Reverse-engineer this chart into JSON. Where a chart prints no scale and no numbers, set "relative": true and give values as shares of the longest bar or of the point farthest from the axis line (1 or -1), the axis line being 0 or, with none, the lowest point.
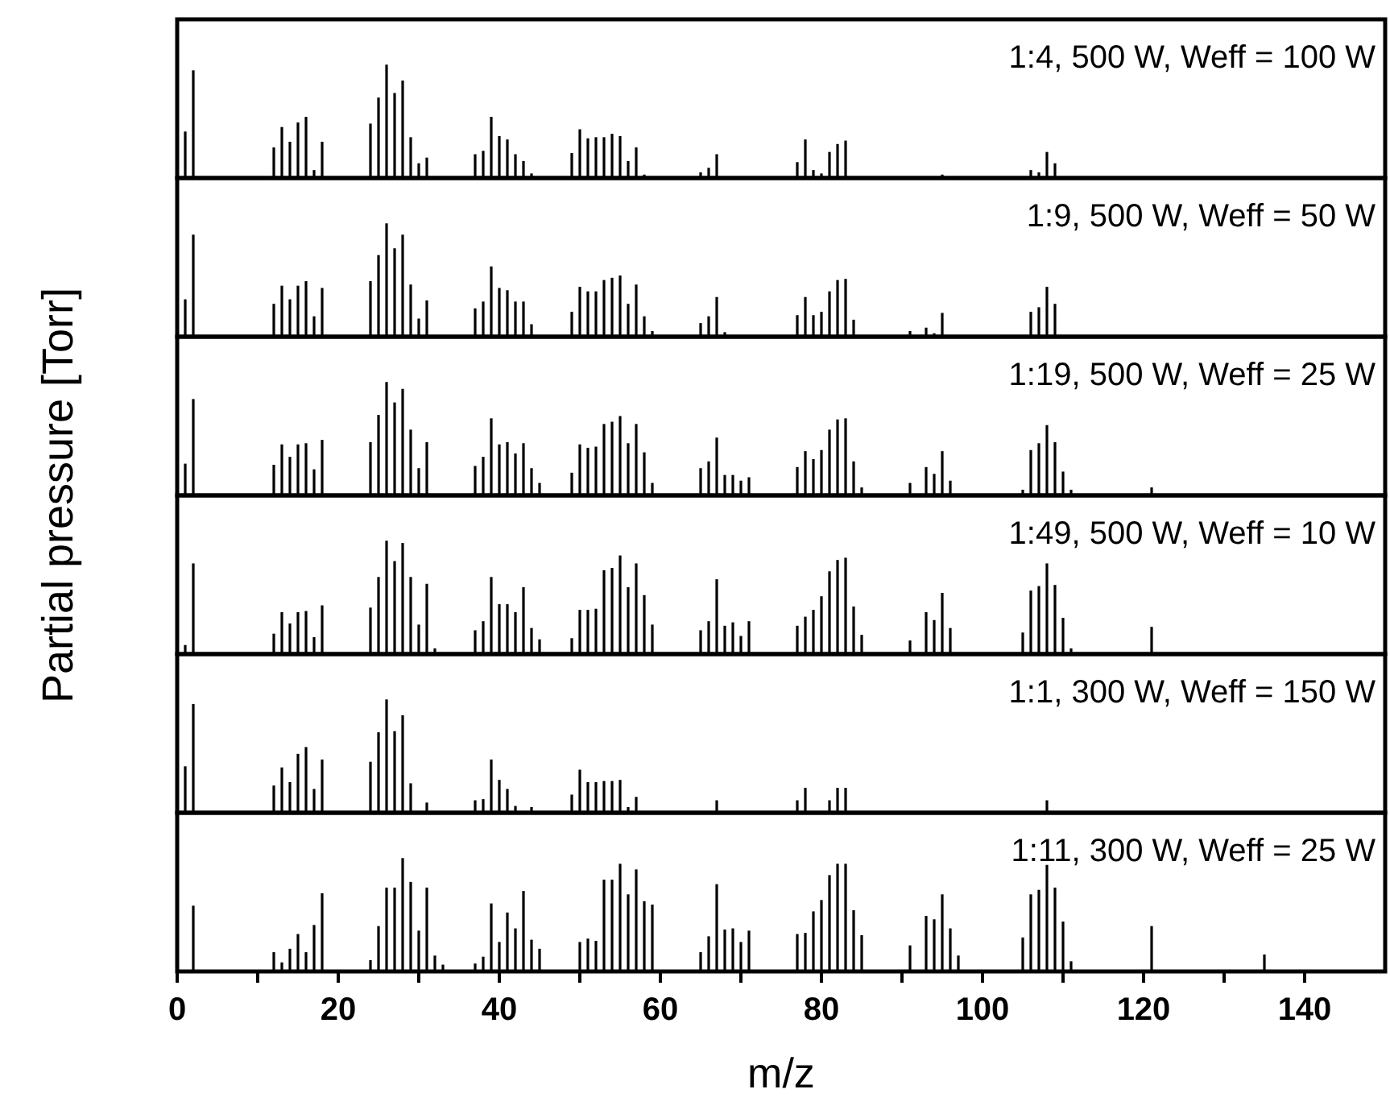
{
  "chart_data": [
    {
      "type": "bar",
      "relative": true,
      "xlim": [
        0,
        150
      ],
      "tick_labels": false,
      "annotations": [
        "1:4, 500 W, Weff = 100 W"
      ],
      "series": [
        {
          "color": "#000000",
          "x": [
            1,
            2,
            12,
            13,
            14,
            15,
            16,
            17,
            18,
            24,
            25,
            26,
            27,
            28,
            29,
            30,
            31,
            37,
            38,
            39,
            40,
            41,
            42,
            43,
            44,
            49,
            50,
            51,
            52,
            53,
            54,
            55,
            56,
            57,
            58,
            65,
            66,
            67,
            77,
            78,
            79,
            80,
            81,
            82,
            83,
            95,
            106,
            107,
            108,
            109
          ],
          "values": [
            0.41,
            0.95,
            0.27,
            0.45,
            0.32,
            0.49,
            0.54,
            0.07,
            0.32,
            0.48,
            0.71,
            1,
            0.75,
            0.86,
            0.36,
            0.13,
            0.18,
            0.21,
            0.24,
            0.54,
            0.37,
            0.34,
            0.21,
            0.15,
            0.04,
            0.22,
            0.43,
            0.35,
            0.36,
            0.36,
            0.39,
            0.37,
            0.15,
            0.27,
            0.03,
            0.05,
            0.09,
            0.21,
            0.14,
            0.34,
            0.07,
            0.04,
            0.23,
            0.3,
            0.33,
            0.03,
            0.07,
            0.05,
            0.23,
            0.13
          ]
        }
      ]
    },
    {
      "type": "bar",
      "relative": true,
      "xlim": [
        0,
        150
      ],
      "tick_labels": false,
      "annotations": [
        "1:9, 500 W, Weff = 50 W"
      ],
      "series": [
        {
          "color": "#000000",
          "x": [
            1,
            2,
            12,
            13,
            14,
            15,
            16,
            17,
            18,
            24,
            25,
            26,
            27,
            28,
            29,
            30,
            31,
            37,
            38,
            39,
            40,
            41,
            42,
            43,
            44,
            49,
            50,
            51,
            52,
            53,
            54,
            55,
            56,
            57,
            58,
            59,
            65,
            66,
            67,
            68,
            77,
            78,
            79,
            80,
            81,
            82,
            83,
            84,
            91,
            93,
            94,
            95,
            106,
            107,
            108,
            109
          ],
          "values": [
            0.33,
            0.9,
            0.29,
            0.45,
            0.33,
            0.45,
            0.49,
            0.18,
            0.43,
            0.49,
            0.72,
            1,
            0.78,
            0.9,
            0.46,
            0.16,
            0.32,
            0.25,
            0.31,
            0.62,
            0.43,
            0.41,
            0.31,
            0.31,
            0.11,
            0.22,
            0.44,
            0.4,
            0.4,
            0.5,
            0.52,
            0.54,
            0.29,
            0.46,
            0.18,
            0.05,
            0.12,
            0.18,
            0.35,
            0.04,
            0.19,
            0.35,
            0.19,
            0.22,
            0.4,
            0.5,
            0.51,
            0.15,
            0.05,
            0.08,
            0.03,
            0.21,
            0.22,
            0.26,
            0.44,
            0.29
          ]
        }
      ]
    },
    {
      "type": "bar",
      "relative": true,
      "xlim": [
        0,
        150
      ],
      "tick_labels": false,
      "ylabel": "Partial pressure [Torr]",
      "annotations": [
        "1:19, 500 W, Weff = 25 W"
      ],
      "series": [
        {
          "color": "#000000",
          "x": [
            1,
            2,
            12,
            13,
            14,
            15,
            16,
            17,
            18,
            24,
            25,
            26,
            27,
            28,
            29,
            30,
            31,
            37,
            38,
            39,
            40,
            41,
            42,
            43,
            44,
            45,
            49,
            50,
            51,
            52,
            53,
            54,
            55,
            56,
            57,
            58,
            59,
            65,
            66,
            67,
            68,
            69,
            70,
            71,
            77,
            78,
            79,
            80,
            81,
            82,
            83,
            84,
            85,
            91,
            93,
            94,
            95,
            96,
            105,
            106,
            107,
            108,
            109,
            110,
            111,
            121
          ],
          "values": [
            0.28,
            0.85,
            0.27,
            0.45,
            0.34,
            0.45,
            0.46,
            0.23,
            0.49,
            0.47,
            0.71,
            1,
            0.82,
            0.94,
            0.58,
            0.24,
            0.47,
            0.26,
            0.34,
            0.68,
            0.45,
            0.47,
            0.37,
            0.46,
            0.24,
            0.11,
            0.2,
            0.45,
            0.42,
            0.43,
            0.63,
            0.65,
            0.7,
            0.46,
            0.63,
            0.38,
            0.11,
            0.24,
            0.3,
            0.51,
            0.18,
            0.18,
            0.13,
            0.16,
            0.25,
            0.39,
            0.32,
            0.4,
            0.58,
            0.67,
            0.68,
            0.3,
            0.07,
            0.11,
            0.25,
            0.19,
            0.39,
            0.13,
            0.05,
            0.4,
            0.46,
            0.62,
            0.47,
            0.21,
            0.05,
            0.07
          ]
        }
      ]
    },
    {
      "type": "bar",
      "relative": true,
      "xlim": [
        0,
        150
      ],
      "tick_labels": false,
      "annotations": [
        "1:49, 500 W, Weff = 10 W"
      ],
      "series": [
        {
          "color": "#000000",
          "x": [
            1,
            2,
            12,
            13,
            14,
            15,
            16,
            17,
            18,
            24,
            25,
            26,
            27,
            28,
            29,
            30,
            31,
            32,
            37,
            38,
            39,
            40,
            41,
            42,
            43,
            44,
            45,
            49,
            50,
            51,
            52,
            53,
            54,
            55,
            56,
            57,
            58,
            59,
            65,
            66,
            67,
            68,
            69,
            70,
            71,
            77,
            78,
            79,
            80,
            81,
            82,
            83,
            84,
            85,
            91,
            93,
            94,
            95,
            96,
            105,
            106,
            107,
            108,
            109,
            110,
            111,
            121
          ],
          "values": [
            0.08,
            0.8,
            0.18,
            0.37,
            0.27,
            0.37,
            0.38,
            0.15,
            0.43,
            0.41,
            0.68,
            1,
            0.82,
            0.98,
            0.68,
            0.26,
            0.62,
            0.05,
            0.21,
            0.29,
            0.68,
            0.44,
            0.44,
            0.37,
            0.59,
            0.23,
            0.13,
            0.14,
            0.39,
            0.39,
            0.4,
            0.74,
            0.76,
            0.87,
            0.59,
            0.8,
            0.52,
            0.26,
            0.21,
            0.29,
            0.66,
            0.25,
            0.28,
            0.16,
            0.29,
            0.25,
            0.33,
            0.39,
            0.51,
            0.73,
            0.83,
            0.85,
            0.42,
            0.17,
            0.12,
            0.37,
            0.3,
            0.54,
            0.23,
            0.19,
            0.56,
            0.6,
            0.8,
            0.61,
            0.32,
            0.05,
            0.24
          ]
        }
      ]
    },
    {
      "type": "bar",
      "relative": true,
      "xlim": [
        0,
        150
      ],
      "tick_labels": false,
      "annotations": [
        "1:1, 300 W, Weff = 150 W"
      ],
      "series": [
        {
          "color": "#000000",
          "x": [
            1,
            2,
            12,
            13,
            14,
            15,
            16,
            17,
            18,
            24,
            25,
            26,
            27,
            28,
            29,
            31,
            37,
            38,
            39,
            40,
            41,
            42,
            44,
            49,
            50,
            51,
            52,
            53,
            54,
            55,
            56,
            57,
            67,
            77,
            78,
            81,
            82,
            83,
            108
          ],
          "values": [
            0.41,
            0.96,
            0.24,
            0.4,
            0.27,
            0.52,
            0.58,
            0.21,
            0.47,
            0.45,
            0.71,
            1,
            0.72,
            0.86,
            0.26,
            0.09,
            0.11,
            0.12,
            0.47,
            0.29,
            0.21,
            0.06,
            0.05,
            0.16,
            0.38,
            0.27,
            0.27,
            0.28,
            0.28,
            0.29,
            0.05,
            0.14,
            0.11,
            0.11,
            0.22,
            0.11,
            0.22,
            0.22,
            0.11
          ]
        }
      ]
    },
    {
      "type": "bar",
      "relative": true,
      "xlim": [
        0,
        150
      ],
      "tick_labels": "x",
      "xlabel": "m/z",
      "xticks": [
        0,
        {
          "value": 10,
          "label": null
        },
        20,
        {
          "value": 30,
          "label": null
        },
        40,
        {
          "value": 50,
          "label": null
        },
        60,
        {
          "value": 70,
          "label": null
        },
        80,
        {
          "value": 90,
          "label": null
        },
        100,
        {
          "value": 110,
          "label": null
        },
        120,
        {
          "value": 130,
          "label": null
        },
        140
      ],
      "annotations": [
        "1:11, 300 W, Weff = 25 W"
      ],
      "series": [
        {
          "color": "#000000",
          "x": [
            2,
            12,
            13,
            14,
            15,
            16,
            17,
            18,
            24,
            25,
            26,
            27,
            28,
            29,
            30,
            31,
            32,
            33,
            37,
            38,
            39,
            40,
            41,
            42,
            43,
            44,
            45,
            50,
            51,
            52,
            53,
            54,
            55,
            56,
            57,
            58,
            59,
            65,
            66,
            67,
            68,
            69,
            70,
            71,
            77,
            78,
            79,
            80,
            81,
            82,
            83,
            84,
            85,
            91,
            93,
            94,
            95,
            96,
            97,
            105,
            106,
            107,
            108,
            109,
            110,
            111,
            121,
            135
          ],
          "values": [
            0.58,
            0.17,
            0.08,
            0.2,
            0.33,
            0.17,
            0.41,
            0.69,
            0.1,
            0.4,
            0.74,
            0.74,
            1,
            0.79,
            0.36,
            0.74,
            0.14,
            0.06,
            0.07,
            0.13,
            0.6,
            0.26,
            0.52,
            0.38,
            0.71,
            0.28,
            0.2,
            0.26,
            0.29,
            0.27,
            0.81,
            0.81,
            0.95,
            0.68,
            0.9,
            0.62,
            0.59,
            0.17,
            0.31,
            0.77,
            0.37,
            0.38,
            0.26,
            0.36,
            0.33,
            0.34,
            0.53,
            0.63,
            0.85,
            0.95,
            0.95,
            0.54,
            0.32,
            0.23,
            0.49,
            0.46,
            0.68,
            0.38,
            0.14,
            0.3,
            0.68,
            0.72,
            0.94,
            0.74,
            0.44,
            0.09,
            0.4,
            0.15
          ]
        }
      ]
    }
  ]
}
